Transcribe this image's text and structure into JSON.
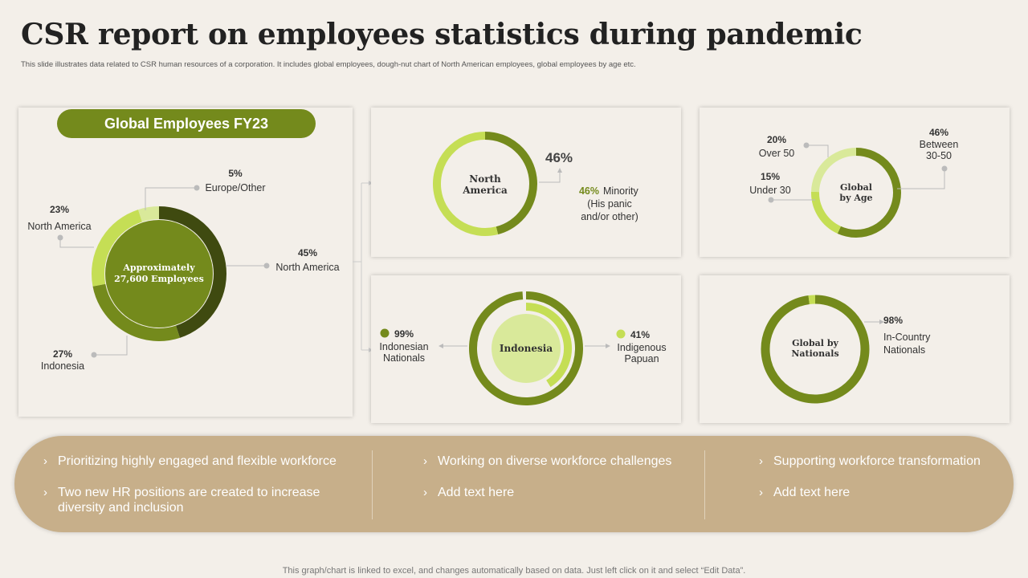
{
  "header": {
    "title": "CSR report on employees statistics during pandemic",
    "subtitle": "This slide illustrates data related to CSR human resources of a corporation. It includes global employees, dough-nut chart of North American employees, global employees by age etc."
  },
  "colors": {
    "dark_olive": "#3f4a10",
    "olive": "#748a1c",
    "light_green": "#c5de55",
    "pale_green": "#d9e99a",
    "tan": "#c7af8a",
    "background": "#f3efe9"
  },
  "chart_data": [
    {
      "type": "pie",
      "variant": "donut",
      "title": "Global Employees FY23",
      "center_label": [
        "Approximately",
        "27,600 Employees"
      ],
      "slices": [
        {
          "label": "North America",
          "value": 45,
          "value_label": "45%",
          "color": "#3f4a10"
        },
        {
          "label": "Indonesia",
          "value": 27,
          "value_label": "27%",
          "color": "#748a1c"
        },
        {
          "label": "North America",
          "value": 23,
          "value_label": "23%",
          "color": "#c5de55"
        },
        {
          "label": "Europe/Other",
          "value": 5,
          "value_label": "5%",
          "color": "#d9e99a"
        }
      ]
    },
    {
      "type": "pie",
      "variant": "donut",
      "center_label": [
        "North",
        "America"
      ],
      "big_label": "46%",
      "slices": [
        {
          "label": "Minority",
          "value": 46,
          "color": "#748a1c"
        },
        {
          "label": "Other",
          "value": 54,
          "color": "#c5de55"
        }
      ],
      "annotation": {
        "value_label": "46%",
        "lines": [
          "Minority",
          "(His panic",
          "and/or other)"
        ]
      }
    },
    {
      "type": "pie",
      "variant": "donut",
      "center_label": [
        "Global",
        "by Age"
      ],
      "slices": [
        {
          "label": "Between 30-50",
          "value": 46,
          "value_label": "46%",
          "color": "#748a1c"
        },
        {
          "label": "Under 30",
          "value": 15,
          "value_label": "15%",
          "color": "#c5de55"
        },
        {
          "label": "Over 50",
          "value": 20,
          "value_label": "20%",
          "color": "#d9e99a"
        }
      ],
      "labels": [
        {
          "value_label": "46%",
          "lines": [
            "Between",
            "30-50"
          ]
        },
        {
          "value_label": "20%",
          "lines": [
            "Over 50"
          ]
        },
        {
          "value_label": "15%",
          "lines": [
            "Under 30"
          ]
        }
      ]
    },
    {
      "type": "pie",
      "variant": "nested-donut",
      "center_label": "Indonesia",
      "rings": [
        {
          "label": "Indonesian Nationals",
          "value": 99,
          "color": "#748a1c"
        },
        {
          "label": "Indigenous Papuan",
          "value": 41,
          "color": "#c5de55"
        }
      ],
      "labels": [
        {
          "value_label": "99%",
          "lines": [
            "Indonesian",
            "Nationals"
          ],
          "color": "#748a1c"
        },
        {
          "value_label": "41%",
          "lines": [
            "Indigenous",
            "Papuan"
          ],
          "color": "#c5de55"
        }
      ]
    },
    {
      "type": "pie",
      "variant": "donut",
      "center_label": [
        "Global by",
        "Nationals"
      ],
      "slices": [
        {
          "label": "In-Country Nationals",
          "value": 98,
          "color": "#748a1c"
        },
        {
          "label": "Other",
          "value": 2,
          "color": "#c5de55"
        }
      ],
      "labels": [
        {
          "value_label": "98%",
          "lines": [
            "In-Country",
            "Nationals"
          ]
        }
      ]
    }
  ],
  "banner": {
    "columns": [
      {
        "items": [
          "Prioritizing highly engaged and flexible workforce",
          "Two new HR positions are created to increase diversity and inclusion"
        ]
      },
      {
        "items": [
          "Working on diverse workforce challenges",
          "Add text here"
        ]
      },
      {
        "items": [
          "Supporting workforce transformation",
          "Add text here"
        ]
      }
    ],
    "chevron": "›"
  },
  "footer": {
    "text": "This graph/chart is linked to excel, and changes automatically based on data. Just left click on it and select “Edit Data”."
  }
}
